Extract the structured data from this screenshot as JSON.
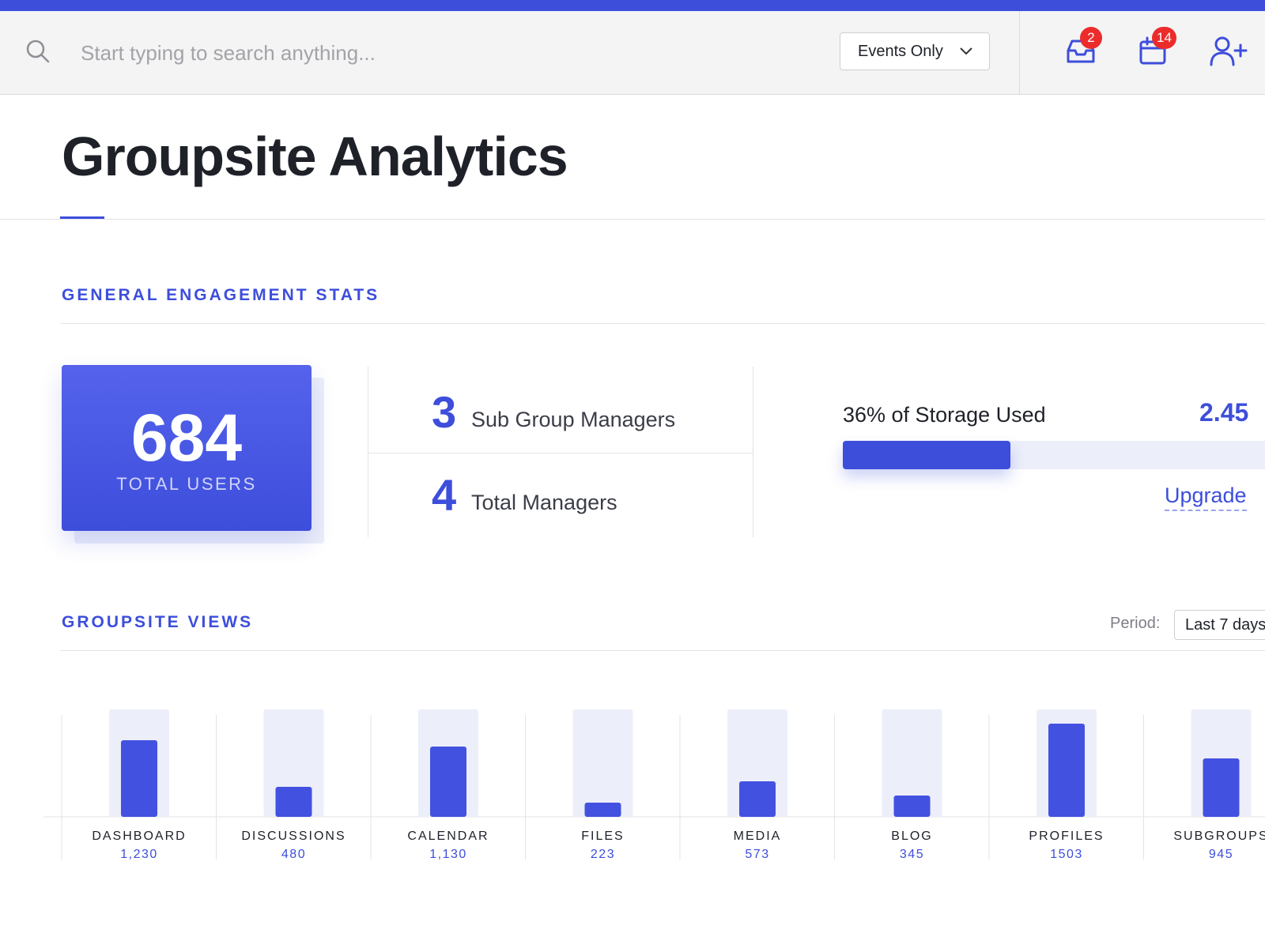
{
  "header": {
    "search_placeholder": "Start typing to search anything...",
    "filter": {
      "selected": "Events Only"
    },
    "icons": [
      {
        "name": "inbox-icon",
        "badge": "2"
      },
      {
        "name": "calendar-icon",
        "badge": "14"
      },
      {
        "name": "add-user-icon"
      }
    ]
  },
  "page": {
    "title": "Groupsite Analytics"
  },
  "engagement": {
    "title": "GENERAL ENGAGEMENT STATS",
    "total_users": {
      "value": "684",
      "label": "TOTAL USERS"
    },
    "sub_group_managers": {
      "value": "3",
      "label": "Sub Group Managers"
    },
    "total_managers": {
      "value": "4",
      "label": "Total Managers"
    },
    "storage": {
      "label": "36% of Storage Used",
      "value_text": "2.45",
      "percent": 36,
      "upgrade_label": "Upgrade"
    }
  },
  "views": {
    "title": "GROUPSITE VIEWS",
    "period_label": "Period:",
    "period_value": "Last 7 days"
  },
  "colors": {
    "accent": "#3d4edb",
    "badge": "#ec2b2b",
    "track": "#eceef9"
  },
  "chart_data": {
    "type": "bar",
    "categories": [
      "DASHBOARD",
      "DISCUSSIONS",
      "CALENDAR",
      "FILES",
      "MEDIA",
      "BLOG",
      "PROFILES",
      "SUBGROUPS"
    ],
    "value_labels": [
      "1,230",
      "480",
      "1,130",
      "223",
      "573",
      "345",
      "1503",
      "945"
    ],
    "values": [
      1230,
      480,
      1130,
      223,
      573,
      345,
      1503,
      945
    ],
    "title": "GROUPSITE VIEWS"
  }
}
